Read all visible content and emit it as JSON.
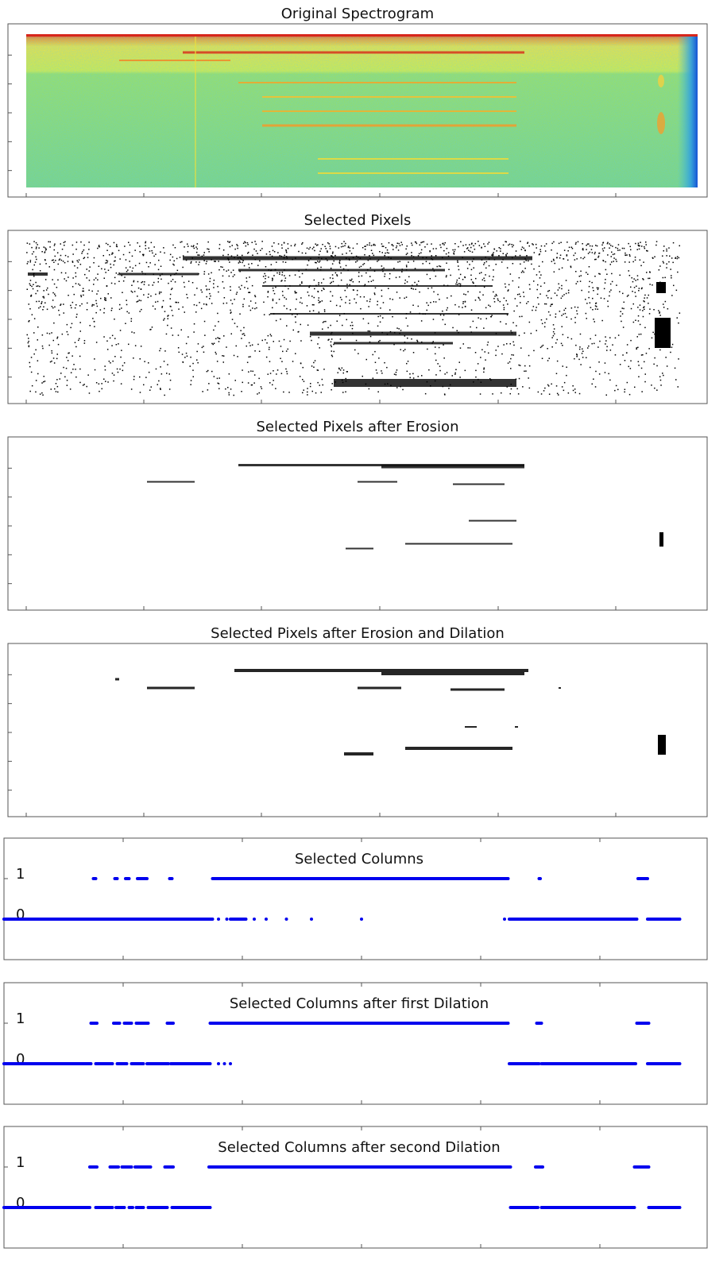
{
  "chart_data": [
    {
      "type": "image",
      "title": "Original Spectrogram"
    },
    {
      "type": "image",
      "title": "Selected Pixels"
    },
    {
      "type": "image",
      "title": "Selected Pixels after Erosion"
    },
    {
      "type": "image",
      "title": "Selected Pixels after Erosion and Dilation"
    },
    {
      "type": "scatter",
      "title": "Selected Columns",
      "color": "#0000ee",
      "xlim": [
        0,
        5900
      ],
      "xticks": [
        1000,
        2000,
        3000,
        4000,
        5000
      ],
      "ylim": [
        -1,
        2
      ],
      "yticks": [
        0,
        1
      ],
      "runs": [
        {
          "value": 1,
          "x": [
            750,
            770
          ]
        },
        {
          "value": 1,
          "x": [
            930,
            950
          ]
        },
        {
          "value": 1,
          "x": [
            1020,
            1050
          ]
        },
        {
          "value": 1,
          "x": [
            1120,
            1200
          ]
        },
        {
          "value": 1,
          "x": [
            1390,
            1410
          ]
        },
        {
          "value": 1,
          "x": [
            1750,
            4230
          ]
        },
        {
          "value": 1,
          "x": [
            4490,
            4500
          ]
        },
        {
          "value": 1,
          "x": [
            5320,
            5400
          ]
        },
        {
          "value": 0,
          "x": [
            0,
            1750
          ]
        },
        {
          "value": 0,
          "x": [
            1800,
            1800
          ]
        },
        {
          "value": 0,
          "x": [
            1870,
            1870
          ]
        },
        {
          "value": 0,
          "x": [
            1900,
            2030
          ]
        },
        {
          "value": 0,
          "x": [
            2100,
            2100
          ]
        },
        {
          "value": 0,
          "x": [
            2200,
            2200
          ]
        },
        {
          "value": 0,
          "x": [
            2370,
            2370
          ]
        },
        {
          "value": 0,
          "x": [
            2580,
            2580
          ]
        },
        {
          "value": 0,
          "x": [
            3000,
            3000
          ]
        },
        {
          "value": 0,
          "x": [
            4200,
            4200
          ]
        },
        {
          "value": 0,
          "x": [
            4240,
            5310
          ]
        },
        {
          "value": 0,
          "x": [
            5400,
            5670
          ]
        }
      ]
    },
    {
      "type": "scatter",
      "title": "Selected Columns after first Dilation",
      "color": "#0000ee",
      "xlim": [
        0,
        5900
      ],
      "xticks": [
        1000,
        2000,
        3000,
        4000,
        5000
      ],
      "ylim": [
        -1,
        2
      ],
      "yticks": [
        0,
        1
      ],
      "runs": [
        {
          "value": 1,
          "x": [
            730,
            780
          ]
        },
        {
          "value": 1,
          "x": [
            920,
            970
          ]
        },
        {
          "value": 1,
          "x": [
            1010,
            1070
          ]
        },
        {
          "value": 1,
          "x": [
            1110,
            1210
          ]
        },
        {
          "value": 1,
          "x": [
            1370,
            1420
          ]
        },
        {
          "value": 1,
          "x": [
            1730,
            4230
          ]
        },
        {
          "value": 1,
          "x": [
            4470,
            4510
          ]
        },
        {
          "value": 1,
          "x": [
            5310,
            5410
          ]
        },
        {
          "value": 0,
          "x": [
            0,
            730
          ]
        },
        {
          "value": 0,
          "x": [
            770,
            910
          ]
        },
        {
          "value": 0,
          "x": [
            950,
            1030
          ]
        },
        {
          "value": 0,
          "x": [
            1070,
            1170
          ]
        },
        {
          "value": 0,
          "x": [
            1200,
            1380
          ]
        },
        {
          "value": 0,
          "x": [
            1400,
            1730
          ]
        },
        {
          "value": 0,
          "x": [
            1800,
            1800
          ]
        },
        {
          "value": 0,
          "x": [
            1850,
            1850
          ]
        },
        {
          "value": 0,
          "x": [
            1900,
            1900
          ]
        },
        {
          "value": 0,
          "x": [
            4240,
            4490
          ]
        },
        {
          "value": 0,
          "x": [
            4510,
            5300
          ]
        },
        {
          "value": 0,
          "x": [
            5400,
            5670
          ]
        }
      ]
    },
    {
      "type": "scatter",
      "title": "Selected Columns after second Dilation",
      "color": "#0000ee",
      "xlim": [
        0,
        5900
      ],
      "xticks": [
        1000,
        2000,
        3000,
        4000,
        5000
      ],
      "ylim": [
        -1,
        2
      ],
      "yticks": [
        0,
        1
      ],
      "runs": [
        {
          "value": 1,
          "x": [
            720,
            780
          ]
        },
        {
          "value": 1,
          "x": [
            890,
            960
          ]
        },
        {
          "value": 1,
          "x": [
            990,
            1070
          ]
        },
        {
          "value": 1,
          "x": [
            1100,
            1230
          ]
        },
        {
          "value": 1,
          "x": [
            1350,
            1420
          ]
        },
        {
          "value": 1,
          "x": [
            1720,
            4250
          ]
        },
        {
          "value": 1,
          "x": [
            4460,
            4520
          ]
        },
        {
          "value": 1,
          "x": [
            5290,
            5410
          ]
        },
        {
          "value": 0,
          "x": [
            0,
            720
          ]
        },
        {
          "value": 0,
          "x": [
            770,
            910
          ]
        },
        {
          "value": 0,
          "x": [
            940,
            1010
          ]
        },
        {
          "value": 0,
          "x": [
            1050,
            1080
          ]
        },
        {
          "value": 0,
          "x": [
            1110,
            1170
          ]
        },
        {
          "value": 0,
          "x": [
            1210,
            1370
          ]
        },
        {
          "value": 0,
          "x": [
            1410,
            1730
          ]
        },
        {
          "value": 0,
          "x": [
            4250,
            4480
          ]
        },
        {
          "value": 0,
          "x": [
            4510,
            5290
          ]
        },
        {
          "value": 0,
          "x": [
            5410,
            5670
          ]
        }
      ]
    }
  ]
}
